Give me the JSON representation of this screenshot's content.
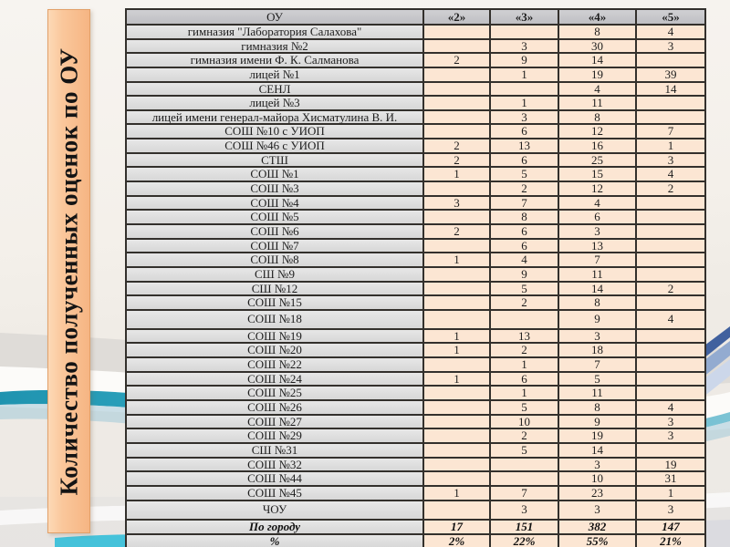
{
  "slide": {
    "title_banner": "Количество полученных оценок по ОУ"
  },
  "table": {
    "columns": [
      "ОУ",
      "«2»",
      "«3»",
      "«4»",
      "«5»"
    ],
    "rows": [
      {
        "name": "гимназия \"Лаборатория Салахова\"",
        "values": [
          "",
          "",
          "8",
          "4"
        ]
      },
      {
        "name": "гимназия №2",
        "values": [
          "",
          "3",
          "30",
          "3"
        ]
      },
      {
        "name": "гимназия имени Ф. К. Салманова",
        "values": [
          "2",
          "9",
          "14",
          ""
        ]
      },
      {
        "name": "лицей №1",
        "values": [
          "",
          "1",
          "19",
          "39"
        ]
      },
      {
        "name": "СЕНЛ",
        "values": [
          "",
          "",
          "4",
          "14"
        ]
      },
      {
        "name": "лицей №3",
        "values": [
          "",
          "1",
          "11",
          ""
        ]
      },
      {
        "name": "лицей имени генерал-майора Хисматулина В. И.",
        "values": [
          "",
          "3",
          "8",
          ""
        ]
      },
      {
        "name": "СОШ №10 с УИОП",
        "values": [
          "",
          "6",
          "12",
          "7"
        ]
      },
      {
        "name": "СОШ №46 с УИОП",
        "values": [
          "2",
          "13",
          "16",
          "1"
        ]
      },
      {
        "name": "СТШ",
        "values": [
          "2",
          "6",
          "25",
          "3"
        ]
      },
      {
        "name": "СОШ №1",
        "values": [
          "1",
          "5",
          "15",
          "4"
        ]
      },
      {
        "name": "СОШ №3",
        "values": [
          "",
          "2",
          "12",
          "2"
        ]
      },
      {
        "name": "СОШ №4",
        "values": [
          "3",
          "7",
          "4",
          ""
        ]
      },
      {
        "name": "СОШ №5",
        "values": [
          "",
          "8",
          "6",
          ""
        ]
      },
      {
        "name": "СОШ №6",
        "values": [
          "2",
          "6",
          "3",
          ""
        ]
      },
      {
        "name": "СОШ №7",
        "values": [
          "",
          "6",
          "13",
          ""
        ]
      },
      {
        "name": "СОШ №8",
        "values": [
          "1",
          "4",
          "7",
          ""
        ]
      },
      {
        "name": "СШ №9",
        "values": [
          "",
          "9",
          "11",
          ""
        ]
      },
      {
        "name": "СШ №12",
        "values": [
          "",
          "5",
          "14",
          "2"
        ]
      },
      {
        "name": "СОШ №15",
        "values": [
          "",
          "2",
          "8",
          ""
        ]
      },
      {
        "name": "СОШ №18",
        "values": [
          "",
          "",
          "9",
          "4"
        ],
        "tall": true
      },
      {
        "name": "СОШ №19",
        "values": [
          "1",
          "13",
          "3",
          ""
        ]
      },
      {
        "name": "СОШ №20",
        "values": [
          "1",
          "2",
          "18",
          ""
        ]
      },
      {
        "name": "СОШ №22",
        "values": [
          "",
          "1",
          "7",
          ""
        ]
      },
      {
        "name": "СОШ №24",
        "values": [
          "1",
          "6",
          "5",
          ""
        ]
      },
      {
        "name": "СОШ №25",
        "values": [
          "",
          "1",
          "11",
          ""
        ]
      },
      {
        "name": "СОШ №26",
        "values": [
          "",
          "5",
          "8",
          "4"
        ]
      },
      {
        "name": "СОШ №27",
        "values": [
          "",
          "10",
          "9",
          "3"
        ]
      },
      {
        "name": "СОШ №29",
        "values": [
          "",
          "2",
          "19",
          "3"
        ]
      },
      {
        "name": "СШ №31",
        "values": [
          "",
          "5",
          "14",
          ""
        ]
      },
      {
        "name": "СОШ №32",
        "values": [
          "",
          "",
          "3",
          "19"
        ]
      },
      {
        "name": "СОШ №44",
        "values": [
          "",
          "",
          "10",
          "31"
        ]
      },
      {
        "name": "СОШ №45",
        "values": [
          "1",
          "7",
          "23",
          "1"
        ]
      },
      {
        "name": "ЧОУ",
        "values": [
          "",
          "3",
          "3",
          "3"
        ],
        "tall": true
      },
      {
        "name": "По городу",
        "values": [
          "17",
          "151",
          "382",
          "147"
        ],
        "style": "total"
      },
      {
        "name": "%",
        "values": [
          "2%",
          "22%",
          "55%",
          "21%"
        ],
        "style": "total"
      }
    ]
  },
  "colors": {
    "banner_fill": "#f9c497",
    "banner_border": "#e2a069",
    "header_bg": "#c6c6ca",
    "name_cell_bg": "#dedede",
    "value_cell_bg": "#fce6d3",
    "table_border": "#33302c",
    "wave_teal": "#2aa5bf",
    "background": "#f1eeea"
  }
}
